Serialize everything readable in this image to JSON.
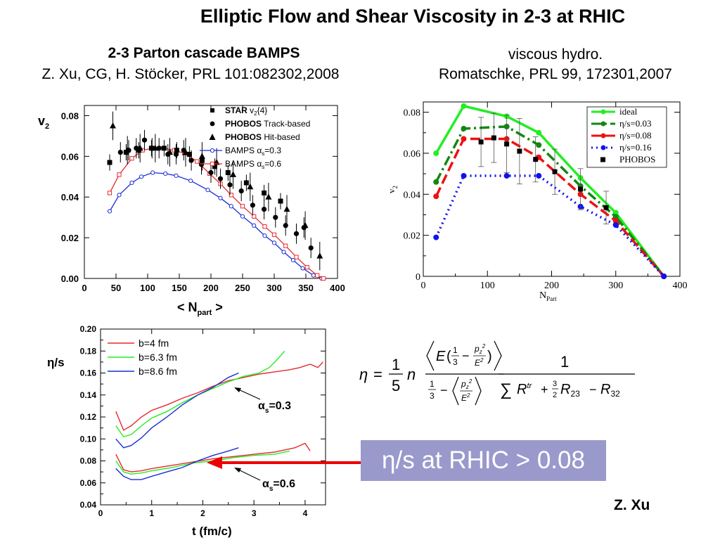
{
  "title": "Elliptic Flow and Shear Viscosity in 2-3 at RHIC",
  "left_caption": {
    "line1": "2-3 Parton cascade BAMPS",
    "line2": "Z. Xu, CG, H. Stöcker, PRL 101:082302,2008"
  },
  "right_caption": {
    "line1": "viscous hydro.",
    "line2": "Romatschke, PRL 99, 172301,2007"
  },
  "callout": "η/s at RHIC > 0.08",
  "credit": "Z. Xu",
  "colors": {
    "red": "#e8282c",
    "green": "#22ee22",
    "blue": "#1a2fd2",
    "dark_green": "#118811",
    "hydro_red": "#ee1111",
    "hydro_blue": "#1111ee",
    "callout_bg": "#9999cc",
    "arrow": "#ee0000"
  },
  "chart_data": [
    {
      "type": "scatter",
      "xlabel": "< N",
      "xlabel_sub": "part",
      "xlabel_end": " >",
      "ylabel": "v",
      "ylabel_sub": "2",
      "xlim": [
        0,
        400
      ],
      "ylim": [
        0,
        0.085
      ],
      "xticks": [
        "0",
        "50",
        "100",
        "150",
        "200",
        "250",
        "300",
        "350",
        "400"
      ],
      "yticks": [
        "0.00",
        "0.02",
        "0.04",
        "0.06",
        "0.08"
      ],
      "legend": [
        {
          "bold": "STAR",
          "text": " v",
          "sub": "2",
          "tail": "{4}",
          "marker": "square"
        },
        {
          "bold": "PHOBOS",
          "text": " Track-based",
          "marker": "circle"
        },
        {
          "bold": "PHOBOS",
          "text": " Hit-based",
          "marker": "triangle"
        },
        {
          "text": "BAMPS  α",
          "sub": "s",
          "tail": "=0.3",
          "marker": "open-circle-line"
        },
        {
          "text": "BAMPS  α",
          "sub": "s",
          "tail": "=0.6",
          "marker": "open-square-line"
        }
      ],
      "legend_position": "top-right",
      "series": [
        {
          "kind": "star",
          "points": [
            [
              40,
              0.057
            ],
            [
              66,
              0.062
            ],
            [
              86,
              0.063
            ],
            [
              106,
              0.064
            ],
            [
              126,
              0.064
            ],
            [
              146,
              0.063
            ],
            [
              166,
              0.061
            ],
            [
              186,
              0.058
            ],
            [
              206,
              0.055
            ],
            [
              227,
              0.052
            ],
            [
              256,
              0.047
            ],
            [
              284,
              0.042
            ],
            [
              310,
              0.038
            ]
          ]
        },
        {
          "kind": "phobos_track",
          "points": [
            [
              57,
              0.062
            ],
            [
              70,
              0.063
            ],
            [
              82,
              0.064
            ],
            [
              95,
              0.068
            ],
            [
              107,
              0.064
            ],
            [
              118,
              0.064
            ],
            [
              132,
              0.061
            ],
            [
              145,
              0.061
            ],
            [
              157,
              0.063
            ],
            [
              169,
              0.058
            ],
            [
              185,
              0.056
            ],
            [
              200,
              0.052
            ],
            [
              215,
              0.049
            ],
            [
              230,
              0.046
            ],
            [
              248,
              0.043
            ],
            [
              266,
              0.036
            ],
            [
              284,
              0.034
            ],
            [
              302,
              0.03
            ],
            [
              318,
              0.026
            ],
            [
              335,
              0.022
            ],
            [
              347,
              0.025
            ],
            [
              358,
              0.015
            ]
          ]
        },
        {
          "kind": "phobos_hit",
          "points": [
            [
              45,
              0.075
            ],
            [
              68,
              0.063
            ],
            [
              88,
              0.064
            ],
            [
              112,
              0.064
            ],
            [
              135,
              0.062
            ],
            [
              160,
              0.062
            ],
            [
              186,
              0.06
            ],
            [
              209,
              0.057
            ],
            [
              235,
              0.051
            ],
            [
              262,
              0.045
            ],
            [
              291,
              0.04
            ],
            [
              320,
              0.034
            ],
            [
              349,
              0.026
            ],
            [
              372,
              0.011
            ]
          ]
        },
        {
          "name": "BAMPS α_s=0.3",
          "kind": "bamps03",
          "points": [
            [
              40,
              0.033
            ],
            [
              55,
              0.041
            ],
            [
              75,
              0.047
            ],
            [
              90,
              0.05
            ],
            [
              108,
              0.052
            ],
            [
              128,
              0.0515
            ],
            [
              145,
              0.0505
            ],
            [
              168,
              0.048
            ],
            [
              195,
              0.0435
            ],
            [
              215,
              0.0395
            ],
            [
              232,
              0.0355
            ],
            [
              250,
              0.0305
            ],
            [
              268,
              0.026
            ],
            [
              285,
              0.021
            ],
            [
              300,
              0.0175
            ],
            [
              315,
              0.013
            ],
            [
              330,
              0.009
            ],
            [
              345,
              0.005
            ],
            [
              362,
              0.0015
            ],
            [
              375,
              0.0
            ]
          ]
        },
        {
          "name": "BAMPS α_s=0.6",
          "kind": "bamps06",
          "points": [
            [
              40,
              0.042
            ],
            [
              55,
              0.051
            ],
            [
              75,
              0.059
            ],
            [
              92,
              0.063
            ],
            [
              108,
              0.064
            ],
            [
              125,
              0.064
            ],
            [
              142,
              0.063
            ],
            [
              158,
              0.0615
            ],
            [
              178,
              0.0575
            ],
            [
              198,
              0.0515
            ],
            [
              215,
              0.0465
            ],
            [
              232,
              0.041
            ],
            [
              250,
              0.0355
            ],
            [
              268,
              0.0305
            ],
            [
              285,
              0.0255
            ],
            [
              300,
              0.0215
            ],
            [
              318,
              0.016
            ],
            [
              335,
              0.0105
            ],
            [
              352,
              0.0055
            ],
            [
              368,
              0.0015
            ],
            [
              378,
              0.0
            ]
          ]
        }
      ]
    },
    {
      "type": "line",
      "xlabel": "N",
      "xlabel_sub": "Part",
      "ylabel": "v",
      "ylabel_sub": "2",
      "xlim": [
        0,
        400
      ],
      "ylim": [
        0,
        0.085
      ],
      "xticks": [
        "0",
        "100",
        "200",
        "300",
        "400"
      ],
      "yticks": [
        "0",
        "0.02",
        "0.04",
        "0.06",
        "0.08"
      ],
      "legend": [
        "ideal",
        "η/s=0.03",
        "η/s=0.08",
        "η/s=0.16",
        "PHOBOS"
      ],
      "legend_position": "top-right",
      "series": [
        {
          "name": "ideal",
          "x": [
            20,
            63,
            130,
            180,
            245,
            300,
            375
          ],
          "y": [
            0.06,
            0.083,
            0.078,
            0.07,
            0.048,
            0.031,
            0.0
          ]
        },
        {
          "name": "η/s=0.03",
          "x": [
            20,
            63,
            130,
            180,
            245,
            300,
            375
          ],
          "y": [
            0.046,
            0.072,
            0.073,
            0.064,
            0.044,
            0.029,
            0.0
          ]
        },
        {
          "name": "η/s=0.08",
          "x": [
            20,
            63,
            130,
            180,
            245,
            300,
            375
          ],
          "y": [
            0.039,
            0.067,
            0.067,
            0.058,
            0.04,
            0.027,
            0.0
          ]
        },
        {
          "name": "η/s=0.16",
          "x": [
            20,
            63,
            130,
            180,
            245,
            300,
            375
          ],
          "y": [
            0.019,
            0.049,
            0.049,
            0.049,
            0.034,
            0.025,
            0.0
          ]
        },
        {
          "name": "PHOBOS",
          "x": [
            90,
            110,
            130,
            150,
            175,
            205,
            245,
            285
          ],
          "y": [
            0.0655,
            0.0675,
            0.0645,
            0.061,
            0.057,
            0.051,
            0.0425,
            0.0335
          ],
          "err": [
            0.012,
            0.012,
            0.014,
            0.016,
            0.011,
            0.011,
            0.01,
            0.008
          ]
        }
      ]
    },
    {
      "type": "line",
      "xlabel": "t  (fm/c)",
      "ylabel": "η/s",
      "xlim": [
        0,
        4.4
      ],
      "ylim": [
        0.04,
        0.2
      ],
      "xticks": [
        "0",
        "1",
        "2",
        "3",
        "4"
      ],
      "yticks": [
        "0.04",
        "0.06",
        "0.08",
        "0.10",
        "0.12",
        "0.14",
        "0.16",
        "0.18",
        "0.20"
      ],
      "legend": [
        "b=4 fm",
        "b=6.3 fm",
        "b=8.6 fm"
      ],
      "legend_position": "top-left",
      "annotations": [
        {
          "text": "α",
          "sub": "s",
          "tail": "=0.3"
        },
        {
          "text": "α",
          "sub": "s",
          "tail": "=0.6"
        }
      ],
      "series": [
        {
          "name": "b=4 fm (α_s=0.3)",
          "x": [
            0.3,
            0.45,
            0.6,
            0.8,
            1,
            1.3,
            1.6,
            1.9,
            2.2,
            2.5,
            2.8,
            3.1,
            3.4,
            3.7,
            3.9,
            4.1,
            4.25,
            4.35
          ],
          "y": [
            0.125,
            0.108,
            0.112,
            0.12,
            0.126,
            0.131,
            0.137,
            0.142,
            0.148,
            0.153,
            0.156,
            0.159,
            0.161,
            0.163,
            0.165,
            0.168,
            0.165,
            0.17
          ]
        },
        {
          "name": "b=6.3 fm (α_s=0.3)",
          "x": [
            0.3,
            0.45,
            0.6,
            0.8,
            1,
            1.3,
            1.6,
            1.9,
            2.2,
            2.5,
            2.8,
            3.1,
            3.3,
            3.45,
            3.6
          ],
          "y": [
            0.112,
            0.102,
            0.104,
            0.112,
            0.119,
            0.125,
            0.133,
            0.14,
            0.146,
            0.152,
            0.157,
            0.16,
            0.165,
            0.172,
            0.18
          ]
        },
        {
          "name": "b=8.6 fm (α_s=0.3)",
          "x": [
            0.3,
            0.45,
            0.6,
            0.8,
            1,
            1.3,
            1.6,
            1.9,
            2.2,
            2.5,
            2.7
          ],
          "y": [
            0.1,
            0.092,
            0.094,
            0.101,
            0.11,
            0.12,
            0.131,
            0.14,
            0.147,
            0.156,
            0.16
          ]
        },
        {
          "name": "b=4 fm (α_s=0.6)",
          "x": [
            0.3,
            0.45,
            0.6,
            0.8,
            1,
            1.4,
            1.8,
            2.2,
            2.6,
            3.0,
            3.4,
            3.8,
            4.0,
            4.1
          ],
          "y": [
            0.086,
            0.072,
            0.07,
            0.071,
            0.073,
            0.076,
            0.079,
            0.082,
            0.084,
            0.086,
            0.088,
            0.092,
            0.096,
            0.089
          ]
        },
        {
          "name": "b=6.3 fm (α_s=0.6)",
          "x": [
            0.3,
            0.45,
            0.6,
            0.8,
            1,
            1.4,
            1.8,
            2.2,
            2.6,
            3.0,
            3.4,
            3.7
          ],
          "y": [
            0.08,
            0.07,
            0.068,
            0.069,
            0.071,
            0.074,
            0.078,
            0.08,
            0.083,
            0.085,
            0.086,
            0.089
          ]
        },
        {
          "name": "b=8.6 fm (α_s=0.6)",
          "x": [
            0.3,
            0.45,
            0.6,
            0.8,
            1,
            1.3,
            1.6,
            1.9,
            2.2,
            2.5,
            2.7
          ],
          "y": [
            0.073,
            0.066,
            0.063,
            0.063,
            0.066,
            0.07,
            0.074,
            0.08,
            0.085,
            0.089,
            0.092
          ]
        }
      ]
    }
  ],
  "equation": {
    "eta": "η",
    "equals": "=",
    "one": "1",
    "five": "5",
    "n": "n",
    "E": "E",
    "third_num": "1",
    "third_den": "3",
    "minus": "−",
    "pz2": "p",
    "pz_sub": "z",
    "sq": "2",
    "E2": "E",
    "sum": "∑",
    "R": "R",
    "tr": "tr",
    "plus": "+",
    "three": "3",
    "two": "2",
    "R23_sub": "23",
    "R32_sub": "32"
  }
}
